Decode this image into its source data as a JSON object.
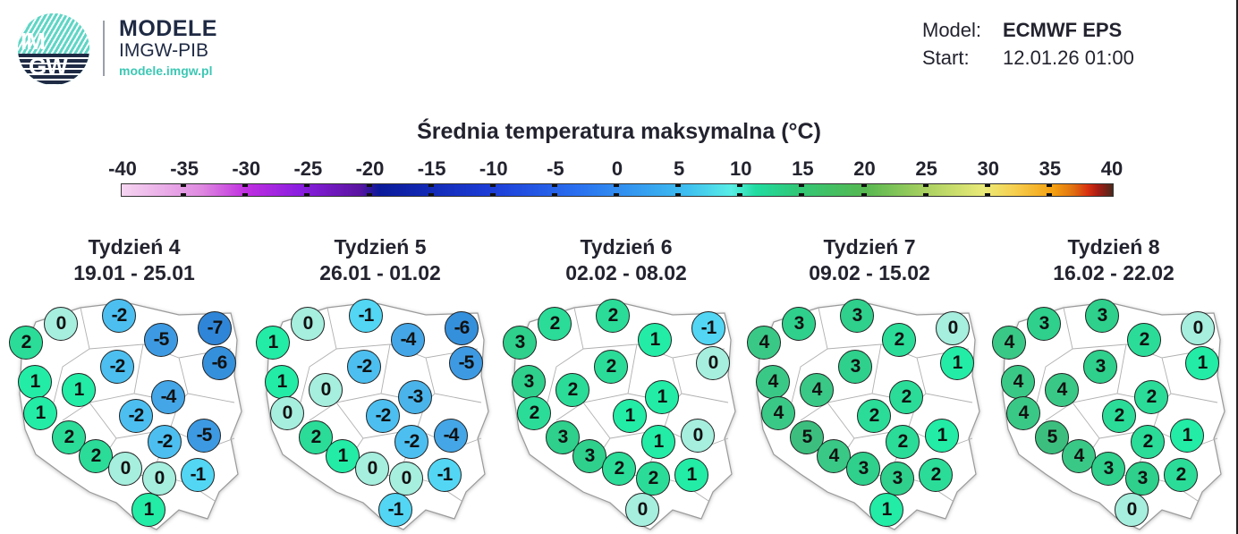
{
  "header": {
    "brand_line1": "MODELE",
    "brand_line2": "IMGW-PIB",
    "brand_url": "modele.imgw.pl",
    "logo_text_top": "IM",
    "logo_text_bottom": "GW",
    "model_label": "Model:",
    "model_value": "ECMWF EPS",
    "start_label": "Start:",
    "start_value": "12.01.26 01:00"
  },
  "colors": {
    "neg7": "#2f86d8",
    "neg6": "#3590dc",
    "neg5": "#3d9ae2",
    "neg4": "#44a6e6",
    "neg3": "#4ab4ea",
    "neg2": "#4cbff0",
    "neg1": "#52d6f4",
    "zero": "#a6eede",
    "pos1": "#22eca6",
    "pos2": "#2adc98",
    "pos3": "#2ed08c",
    "pos4": "#3ac886",
    "pos5": "#3cbf7e"
  },
  "chart_data": {
    "type": "heatmap",
    "title": "Średnia temperatura maksymalna (°C)",
    "colorbar": {
      "min": -40,
      "max": 40,
      "ticks": [
        -40,
        -35,
        -30,
        -25,
        -20,
        -15,
        -10,
        -5,
        0,
        5,
        10,
        15,
        20,
        25,
        30,
        35,
        40
      ]
    },
    "region_order": [
      "NW coast",
      "N coast west",
      "N coast center",
      "N coast east/Warmia",
      "NE corner",
      "NE east",
      "W",
      "Central north",
      "West interior",
      "Central east",
      "Central",
      "SW west",
      "East",
      "SW",
      "South central",
      "South west-middle",
      "South",
      "South middle",
      "Southeast",
      "Far south"
    ],
    "weeks": [
      {
        "label": "Tydzień 4",
        "dates": "19.01 - 25.01",
        "values": [
          2,
          0,
          -2,
          -5,
          -7,
          -6,
          1,
          -2,
          1,
          -4,
          -2,
          1,
          -5,
          2,
          -2,
          2,
          0,
          0,
          -1,
          1
        ]
      },
      {
        "label": "Tydzień 5",
        "dates": "26.01 - 01.02",
        "values": [
          1,
          0,
          -1,
          -4,
          -6,
          -5,
          1,
          -2,
          0,
          -3,
          -2,
          0,
          -4,
          2,
          -2,
          1,
          0,
          0,
          -1,
          -1
        ]
      },
      {
        "label": "Tydzień 6",
        "dates": "02.02 - 08.02",
        "values": [
          3,
          2,
          2,
          1,
          -1,
          0,
          3,
          2,
          2,
          1,
          1,
          2,
          0,
          3,
          1,
          3,
          2,
          2,
          1,
          0
        ]
      },
      {
        "label": "Tydzień 7",
        "dates": "09.02 - 15.02",
        "values": [
          4,
          3,
          3,
          2,
          0,
          1,
          4,
          3,
          4,
          2,
          2,
          4,
          1,
          5,
          2,
          4,
          3,
          3,
          2,
          1
        ]
      },
      {
        "label": "Tydzień 8",
        "dates": "16.02 - 22.02",
        "values": [
          4,
          3,
          3,
          2,
          0,
          1,
          4,
          3,
          4,
          2,
          2,
          4,
          1,
          5,
          2,
          4,
          3,
          3,
          2,
          0
        ]
      }
    ]
  }
}
